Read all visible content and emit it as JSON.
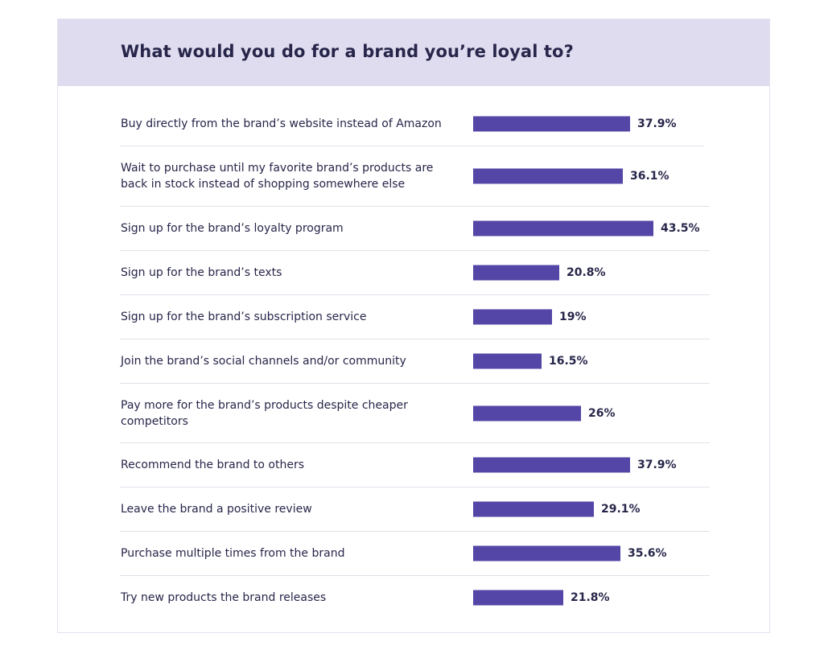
{
  "chart_data": {
    "type": "bar",
    "orientation": "horizontal",
    "title": "What would you do for a brand you’re loyal to?",
    "value_suffix": "%",
    "categories": [
      "Buy directly from the brand’s website instead of Amazon",
      "Wait to purchase until my favorite brand’s products are back in stock instead of shopping somewhere else",
      "Sign up for the brand’s loyalty program",
      "Sign up for the brand’s texts",
      "Sign up for the brand’s subscription service",
      "Join the brand’s social channels and/or community",
      "Pay more for the brand’s products despite cheaper competitors",
      "Recommend the brand to others",
      "Leave the brand a positive review",
      "Purchase multiple times from the brand",
      "Try new products the brand releases"
    ],
    "values": [
      37.9,
      36.1,
      43.5,
      20.8,
      19,
      16.5,
      26,
      37.9,
      29.1,
      35.6,
      21.8
    ],
    "value_labels": [
      "37.9%",
      "36.1%",
      "43.5%",
      "20.8%",
      "19%",
      "16.5%",
      "26%",
      "37.9%",
      "29.1%",
      "35.6%",
      "21.8%"
    ],
    "xlim": [
      0,
      43.5
    ],
    "bar_color": "#5346a6"
  },
  "colors": {
    "header_bg": "#e0dcf0",
    "text": "#27264a",
    "bar": "#5346a6",
    "divider": "#e2e0ea"
  }
}
